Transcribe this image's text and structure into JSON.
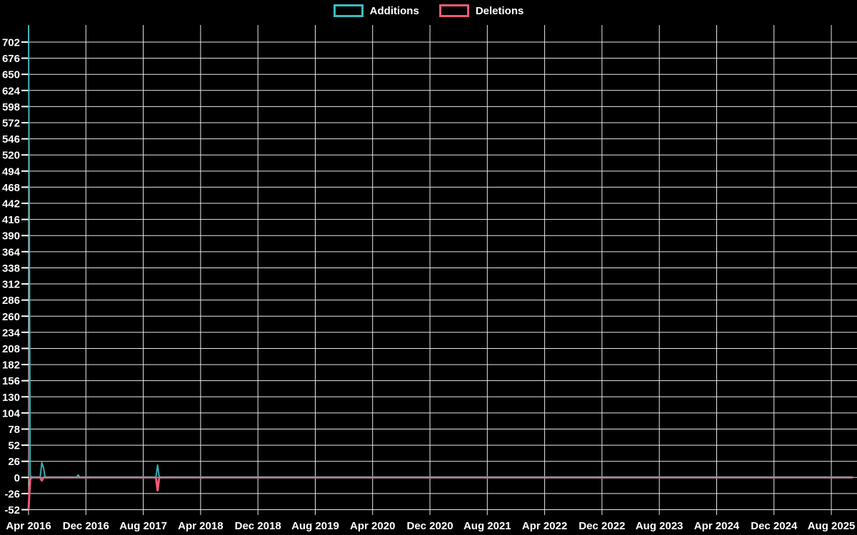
{
  "chart_data": {
    "type": "line",
    "title": "",
    "background": "#000000",
    "grid": true,
    "legend_position": "top-center",
    "legend": [
      {
        "label": "Additions",
        "color": "#3bbcc3"
      },
      {
        "label": "Deletions",
        "color": "#ef5a77"
      }
    ],
    "y_tick_step": 26,
    "y_ticks": [
      702,
      676,
      650,
      624,
      598,
      572,
      546,
      520,
      494,
      468,
      442,
      416,
      390,
      364,
      338,
      312,
      286,
      260,
      234,
      208,
      182,
      156,
      130,
      104,
      78,
      52,
      26,
      0,
      -26,
      -52
    ],
    "ylim": [
      -59,
      731
    ],
    "x_tick_labels": [
      "Apr 2016",
      "Dec 2016",
      "Aug 2017",
      "Apr 2018",
      "Dec 2018",
      "Aug 2019",
      "Apr 2020",
      "Dec 2020",
      "Aug 2021",
      "Apr 2022",
      "Dec 2022",
      "Aug 2023",
      "Apr 2024",
      "Dec 2024",
      "Aug 2025"
    ],
    "x_range": {
      "start": "Apr 2016",
      "end": "Nov 2025",
      "n_weeks": 499,
      "months_per_gridline": 8
    },
    "series": [
      {
        "name": "Additions",
        "color": "#3bbcc3",
        "baseline": 0,
        "points": [
          {
            "week": 0,
            "date": "Apr 2016",
            "value": 728
          },
          {
            "week": 1,
            "date": "Apr 2016",
            "value": 3
          },
          {
            "week": 8,
            "date": "Jun 2016",
            "value": 24
          },
          {
            "week": 9,
            "date": "Jun 2016",
            "value": 16
          },
          {
            "week": 30,
            "date": "Nov 2016",
            "value": 4
          },
          {
            "week": 78,
            "date": "Oct 2017",
            "value": 20
          }
        ]
      },
      {
        "name": "Deletions",
        "color": "#ef5a77",
        "baseline": 0,
        "points": [
          {
            "week": 0,
            "date": "Apr 2016",
            "value": -50
          },
          {
            "week": 1,
            "date": "Apr 2016",
            "value": -3
          },
          {
            "week": 8,
            "date": "Jun 2016",
            "value": -5
          },
          {
            "week": 78,
            "date": "Oct 2017",
            "value": -21
          }
        ]
      }
    ]
  }
}
